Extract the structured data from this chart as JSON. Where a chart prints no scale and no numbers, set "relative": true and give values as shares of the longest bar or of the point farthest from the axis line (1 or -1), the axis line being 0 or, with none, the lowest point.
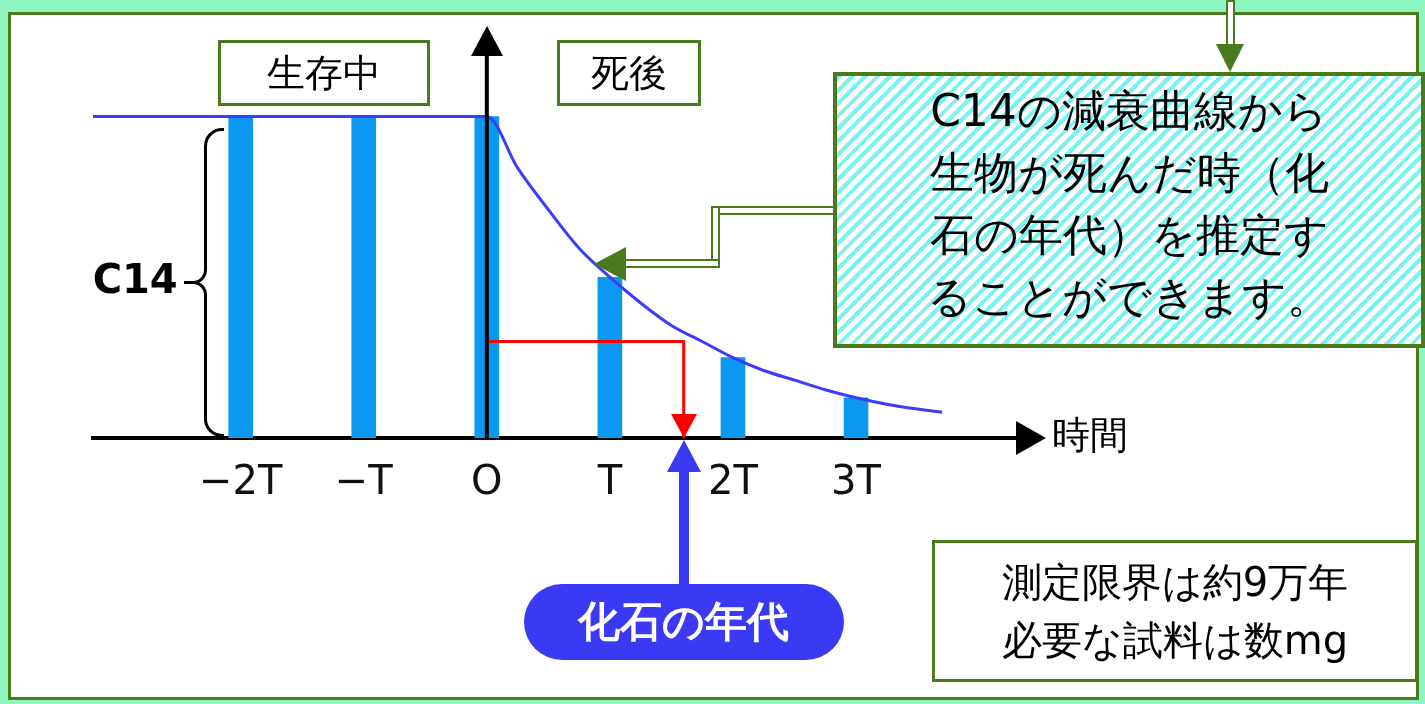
{
  "chart_data": {
    "type": "bar",
    "relative": true,
    "xlabel": "時間",
    "ylabel": "C14",
    "xlim": [
      -3.2,
      4.3
    ],
    "xticks": [
      {
        "value": -2,
        "label": "−2T"
      },
      {
        "value": -1,
        "label": "−T"
      },
      {
        "value": 0,
        "label": "O"
      },
      {
        "value": 1,
        "label": "T"
      },
      {
        "value": 2,
        "label": "2T"
      },
      {
        "value": 3,
        "label": "3T"
      }
    ],
    "series": [
      {
        "color": "#0a98f0",
        "x": [
          -2,
          -1,
          0,
          1,
          2,
          3
        ],
        "values": [
          1,
          1,
          1,
          0.5,
          0.25,
          0.125
        ]
      },
      {
        "type": "line",
        "color": "#3c3cff",
        "x": [
          -3.2,
          0,
          0.25,
          0.5,
          0.75,
          1,
          1.25,
          1.5,
          1.75,
          2,
          2.25,
          2.5,
          2.75,
          3,
          3.25,
          3.5,
          3.7
        ],
        "values": [
          1,
          1,
          0.84,
          0.71,
          0.59,
          0.5,
          0.42,
          0.35,
          0.3,
          0.25,
          0.21,
          0.18,
          0.15,
          0.125,
          0.105,
          0.09,
          0.08
        ]
      },
      {
        "type": "line",
        "color": "#ff0000",
        "x": [
          0,
          1.6,
          1.6
        ],
        "values": [
          0.3,
          0.3,
          0
        ]
      }
    ],
    "annotations": [
      "生存中",
      "死後",
      "化石の年代",
      "C14の減衰曲線から生物が死んだ時（化石の年代）を推定することができます。",
      "測定限界は約9万年必要な試料は数mg"
    ]
  }
}
